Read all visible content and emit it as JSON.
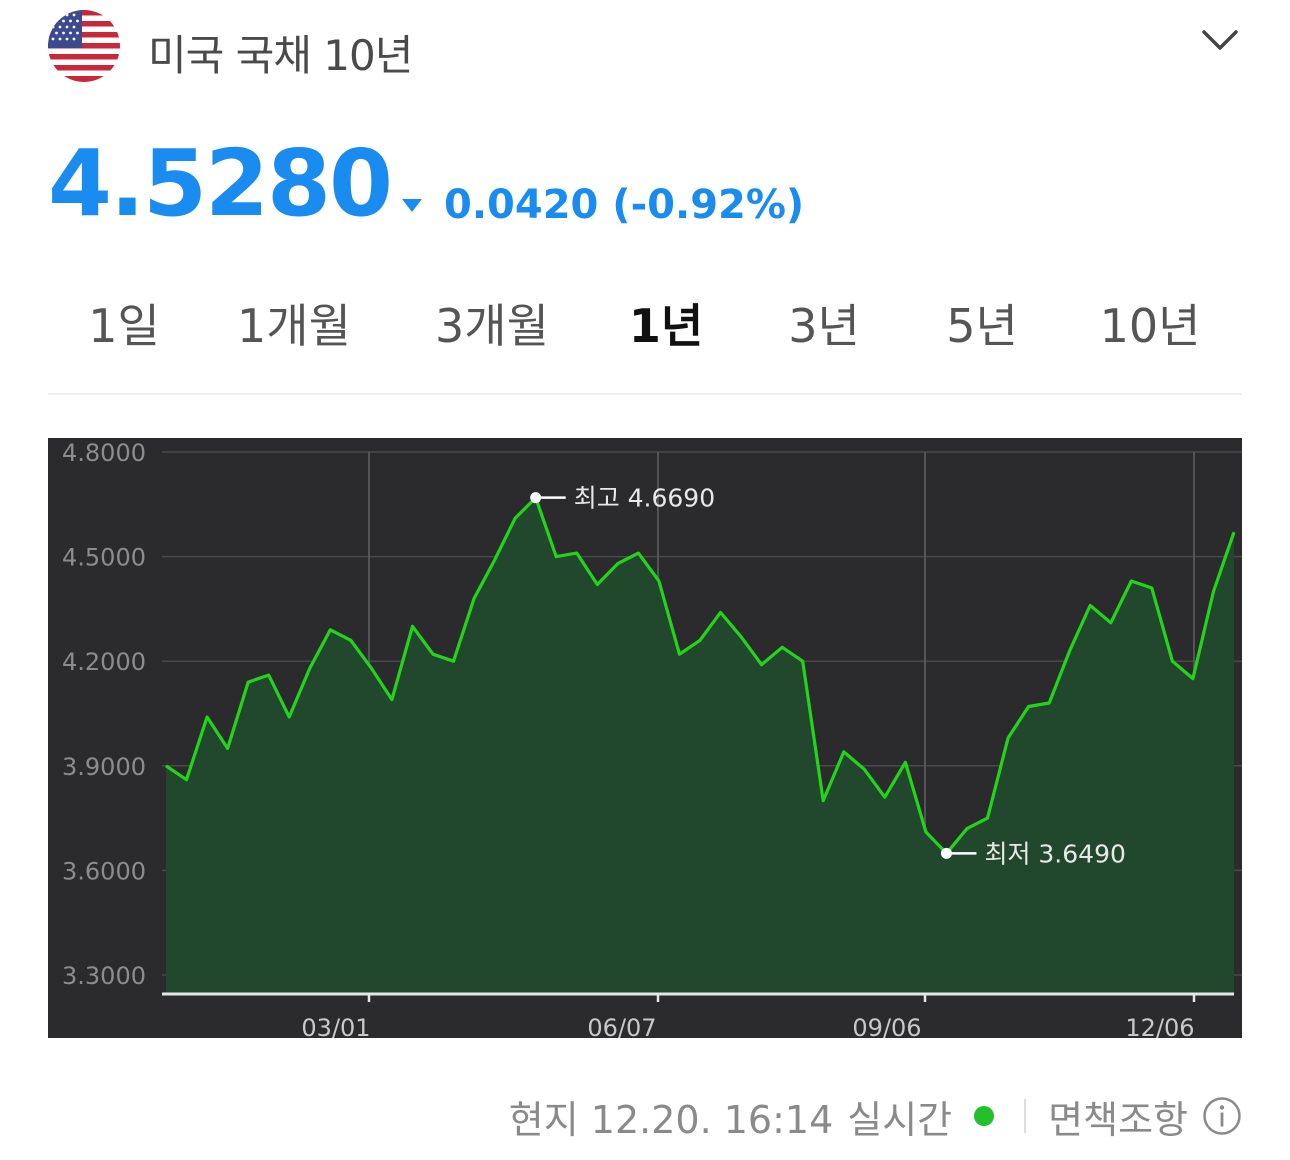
{
  "header": {
    "title": "미국 국채 10년",
    "flag_icon": "us-flag-icon",
    "dropdown_icon": "chevron-down-icon"
  },
  "quote": {
    "price": "4.5280",
    "change": "0.0420 (-0.92%)",
    "direction": "down",
    "color": "#1a8cf0"
  },
  "tabs": [
    {
      "label": "1일",
      "active": false
    },
    {
      "label": "1개월",
      "active": false
    },
    {
      "label": "3개월",
      "active": false
    },
    {
      "label": "1년",
      "active": true
    },
    {
      "label": "3년",
      "active": false
    },
    {
      "label": "5년",
      "active": false
    },
    {
      "label": "10년",
      "active": false
    }
  ],
  "chart_data": {
    "type": "area",
    "title": "",
    "xlabel": "",
    "ylabel": "",
    "ylim": [
      3.25,
      4.8
    ],
    "yticks": [
      "4.8000",
      "4.5000",
      "4.2000",
      "3.9000",
      "3.6000",
      "3.3000"
    ],
    "xticks": [
      "03/01",
      "06/07",
      "09/06",
      "12/06"
    ],
    "grid": true,
    "line_color": "#22d41a",
    "fill_color": "#21482c",
    "background": "#2b2b2d",
    "series": [
      {
        "values": [
          3.9,
          3.86,
          4.04,
          3.95,
          4.14,
          4.16,
          4.04,
          4.18,
          4.29,
          4.26,
          4.18,
          4.09,
          4.3,
          4.22,
          4.2,
          4.38,
          4.49,
          4.61,
          4.669,
          4.5,
          4.51,
          4.42,
          4.48,
          4.51,
          4.43,
          4.22,
          4.26,
          4.34,
          4.27,
          4.19,
          4.24,
          4.2,
          3.8,
          3.94,
          3.89,
          3.81,
          3.91,
          3.71,
          3.649,
          3.72,
          3.75,
          3.98,
          4.07,
          4.08,
          4.23,
          4.36,
          4.31,
          4.43,
          4.41,
          4.2,
          4.15,
          4.4,
          4.57
        ]
      }
    ],
    "annotations": [
      {
        "label": "최고 4.6690",
        "index": 18,
        "value": 4.669
      },
      {
        "label": "최저 3.6490",
        "index": 38,
        "value": 3.649
      }
    ]
  },
  "footer": {
    "timestamp": "현지 12.20. 16:14",
    "realtime_label": "실시간",
    "realtime_color": "#22c02a",
    "disclaimer": "면책조항",
    "info_icon": "info-icon"
  }
}
